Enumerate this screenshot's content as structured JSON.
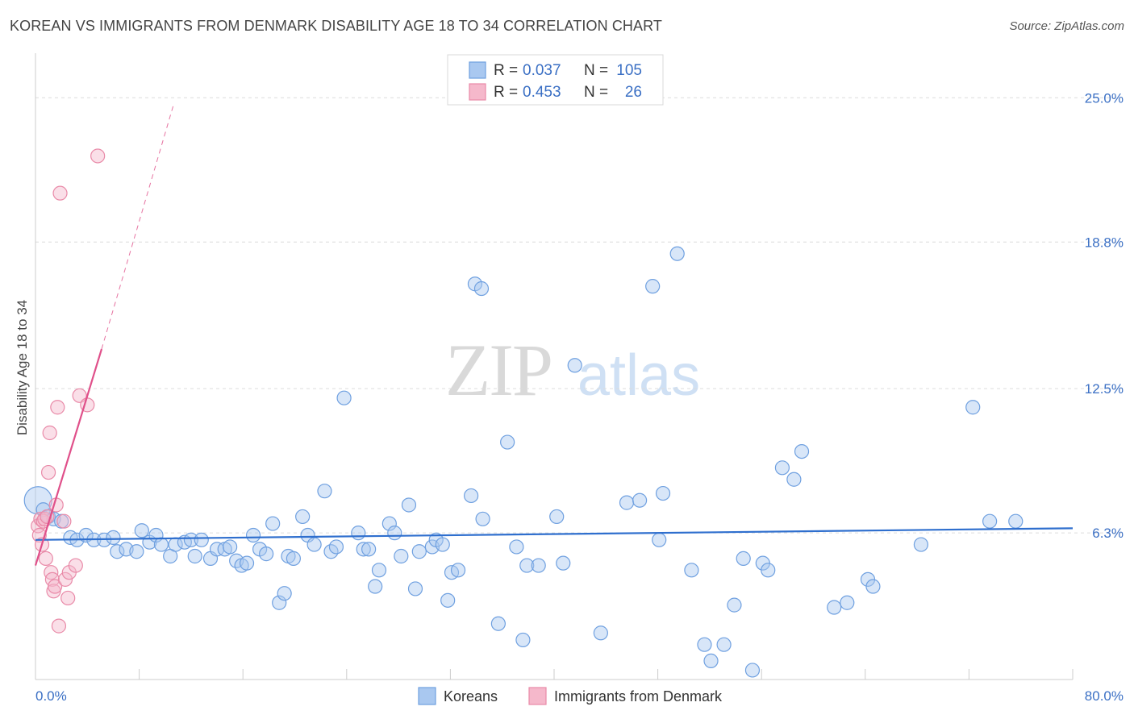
{
  "chart_data": {
    "type": "scatter",
    "title": "KOREAN VS IMMIGRANTS FROM DENMARK DISABILITY AGE 18 TO 34 CORRELATION CHART",
    "source": "Source: ZipAtlas.com",
    "xlabel": "",
    "ylabel": "Disability Age 18 to 34",
    "xlim": [
      0,
      80
    ],
    "ylim": [
      0,
      26.5
    ],
    "x_tick_labels": [
      "0.0%",
      "80.0%"
    ],
    "y_ticks": [
      6.3,
      12.5,
      18.8,
      25.0
    ],
    "y_tick_labels": [
      "6.3%",
      "12.5%",
      "18.8%",
      "25.0%"
    ],
    "watermark": "ZIPatlas",
    "legend": {
      "rows": [
        {
          "r_label": "R = ",
          "r_value": "0.037",
          "n_label": "N = ",
          "n_value": "105"
        },
        {
          "r_label": "R = ",
          "r_value": "0.453",
          "n_label": "N = ",
          "n_value": "26"
        }
      ]
    },
    "series": [
      {
        "name": "Koreans",
        "color": "#6fa0e0",
        "fill": "#a9c8f0",
        "trend_color": "#2f6fce",
        "trend": {
          "x0": 0,
          "y0": 6.0,
          "x1": 80,
          "y1": 6.5
        },
        "points": [
          [
            0.2,
            7.7
          ],
          [
            0.6,
            7.3
          ],
          [
            1.0,
            7.0
          ],
          [
            1.4,
            6.9
          ],
          [
            2.0,
            6.8
          ],
          [
            2.7,
            6.1
          ],
          [
            3.2,
            6.0
          ],
          [
            3.9,
            6.2
          ],
          [
            4.5,
            6.0
          ],
          [
            5.3,
            6.0
          ],
          [
            6.0,
            6.1
          ],
          [
            6.3,
            5.5
          ],
          [
            7.0,
            5.6
          ],
          [
            7.8,
            5.5
          ],
          [
            8.2,
            6.4
          ],
          [
            8.8,
            5.9
          ],
          [
            9.3,
            6.2
          ],
          [
            9.7,
            5.8
          ],
          [
            10.4,
            5.3
          ],
          [
            10.8,
            5.8
          ],
          [
            11.5,
            5.9
          ],
          [
            12.0,
            6.0
          ],
          [
            12.3,
            5.3
          ],
          [
            12.8,
            6.0
          ],
          [
            13.5,
            5.2
          ],
          [
            14.0,
            5.6
          ],
          [
            14.6,
            5.6
          ],
          [
            15.0,
            5.7
          ],
          [
            15.5,
            5.1
          ],
          [
            15.9,
            4.9
          ],
          [
            16.3,
            5.0
          ],
          [
            16.8,
            6.2
          ],
          [
            17.3,
            5.6
          ],
          [
            17.8,
            5.4
          ],
          [
            18.3,
            6.7
          ],
          [
            18.8,
            3.3
          ],
          [
            19.2,
            3.7
          ],
          [
            19.5,
            5.3
          ],
          [
            19.9,
            5.2
          ],
          [
            20.6,
            7.0
          ],
          [
            21.0,
            6.2
          ],
          [
            21.5,
            5.8
          ],
          [
            22.3,
            8.1
          ],
          [
            22.8,
            5.5
          ],
          [
            23.2,
            5.7
          ],
          [
            23.8,
            12.1
          ],
          [
            24.9,
            6.3
          ],
          [
            25.3,
            5.6
          ],
          [
            25.7,
            5.6
          ],
          [
            26.2,
            4.0
          ],
          [
            26.5,
            4.7
          ],
          [
            27.3,
            6.7
          ],
          [
            27.7,
            6.3
          ],
          [
            28.2,
            5.3
          ],
          [
            28.8,
            7.5
          ],
          [
            29.3,
            3.9
          ],
          [
            29.6,
            5.5
          ],
          [
            30.6,
            5.7
          ],
          [
            30.9,
            6.0
          ],
          [
            31.4,
            5.8
          ],
          [
            31.8,
            3.4
          ],
          [
            32.1,
            4.6
          ],
          [
            32.6,
            4.7
          ],
          [
            33.6,
            7.9
          ],
          [
            33.9,
            17.0
          ],
          [
            34.4,
            16.8
          ],
          [
            34.5,
            6.9
          ],
          [
            35.7,
            2.4
          ],
          [
            36.4,
            10.2
          ],
          [
            37.1,
            5.7
          ],
          [
            37.6,
            1.7
          ],
          [
            37.9,
            4.9
          ],
          [
            38.8,
            4.9
          ],
          [
            40.2,
            7.0
          ],
          [
            40.7,
            5.0
          ],
          [
            41.6,
            13.5
          ],
          [
            43.6,
            2.0
          ],
          [
            45.6,
            7.6
          ],
          [
            46.6,
            7.7
          ],
          [
            47.6,
            16.9
          ],
          [
            48.1,
            6.0
          ],
          [
            48.4,
            8.0
          ],
          [
            49.5,
            18.3
          ],
          [
            50.6,
            4.7
          ],
          [
            51.6,
            1.5
          ],
          [
            52.1,
            0.8
          ],
          [
            53.1,
            1.5
          ],
          [
            53.9,
            3.2
          ],
          [
            54.6,
            5.2
          ],
          [
            55.3,
            0.4
          ],
          [
            56.1,
            5.0
          ],
          [
            56.5,
            4.7
          ],
          [
            57.6,
            9.1
          ],
          [
            58.5,
            8.6
          ],
          [
            59.1,
            9.8
          ],
          [
            61.6,
            3.1
          ],
          [
            62.6,
            3.3
          ],
          [
            64.2,
            4.3
          ],
          [
            64.6,
            4.0
          ],
          [
            68.3,
            5.8
          ],
          [
            72.3,
            11.7
          ],
          [
            73.6,
            6.8
          ],
          [
            75.6,
            6.8
          ]
        ],
        "point_sizes": {
          "0": 34
        }
      },
      {
        "name": "Immigrants from Denmark",
        "color": "#e98aa8",
        "fill": "#f5b8cb",
        "trend_color": "#e0508a",
        "trend": {
          "x0": 0,
          "y0": 4.9,
          "x1": 5.1,
          "y1": 14.2
        },
        "trend_dashed": {
          "x0": 5.1,
          "y0": 14.2,
          "x1": 10.7,
          "y1": 24.8
        },
        "points": [
          [
            0.2,
            6.6
          ],
          [
            0.3,
            6.2
          ],
          [
            0.4,
            6.9
          ],
          [
            0.5,
            5.8
          ],
          [
            0.6,
            6.8
          ],
          [
            0.7,
            6.9
          ],
          [
            0.8,
            5.2
          ],
          [
            0.9,
            7.0
          ],
          [
            1.0,
            8.9
          ],
          [
            1.1,
            10.6
          ],
          [
            1.2,
            4.6
          ],
          [
            1.3,
            4.3
          ],
          [
            1.4,
            3.8
          ],
          [
            1.5,
            4.0
          ],
          [
            1.6,
            7.5
          ],
          [
            1.7,
            11.7
          ],
          [
            1.8,
            2.3
          ],
          [
            1.9,
            20.9
          ],
          [
            2.2,
            6.8
          ],
          [
            2.3,
            4.3
          ],
          [
            2.5,
            3.5
          ],
          [
            2.6,
            4.6
          ],
          [
            3.1,
            4.9
          ],
          [
            3.4,
            12.2
          ],
          [
            4.0,
            11.8
          ],
          [
            4.8,
            22.5
          ]
        ]
      }
    ]
  },
  "bottom_legend": [
    {
      "label": "Koreans"
    },
    {
      "label": "Immigrants from Denmark"
    }
  ]
}
